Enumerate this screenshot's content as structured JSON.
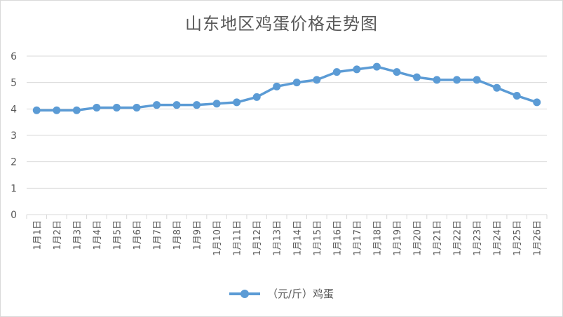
{
  "chart_data": {
    "type": "line",
    "title": "山东地区鸡蛋价格走势图",
    "categories": [
      "1月1日",
      "1月2日",
      "1月3日",
      "1月4日",
      "1月5日",
      "1月6日",
      "1月7日",
      "1月8日",
      "1月9日",
      "1月10日",
      "1月11日",
      "1月12日",
      "1月13日",
      "1月14日",
      "1月15日",
      "1月16日",
      "1月17日",
      "1月18日",
      "1月19日",
      "1月20日",
      "1月21日",
      "1月22日",
      "1月23日",
      "1月24日",
      "1月25日",
      "1月26日"
    ],
    "series": [
      {
        "name": "（元/斤）鸡蛋",
        "color": "#5b9bd5",
        "values": [
          3.95,
          3.95,
          3.95,
          4.05,
          4.05,
          4.05,
          4.15,
          4.15,
          4.15,
          4.2,
          4.25,
          4.45,
          4.85,
          5.0,
          5.1,
          5.4,
          5.5,
          5.6,
          5.4,
          5.2,
          5.1,
          5.1,
          5.1,
          4.8,
          4.5,
          4.25
        ]
      }
    ],
    "ylim": [
      0,
      6
    ],
    "yticks": [
      0,
      1,
      2,
      3,
      4,
      5,
      6
    ],
    "grid": true,
    "legend": "bottom"
  }
}
